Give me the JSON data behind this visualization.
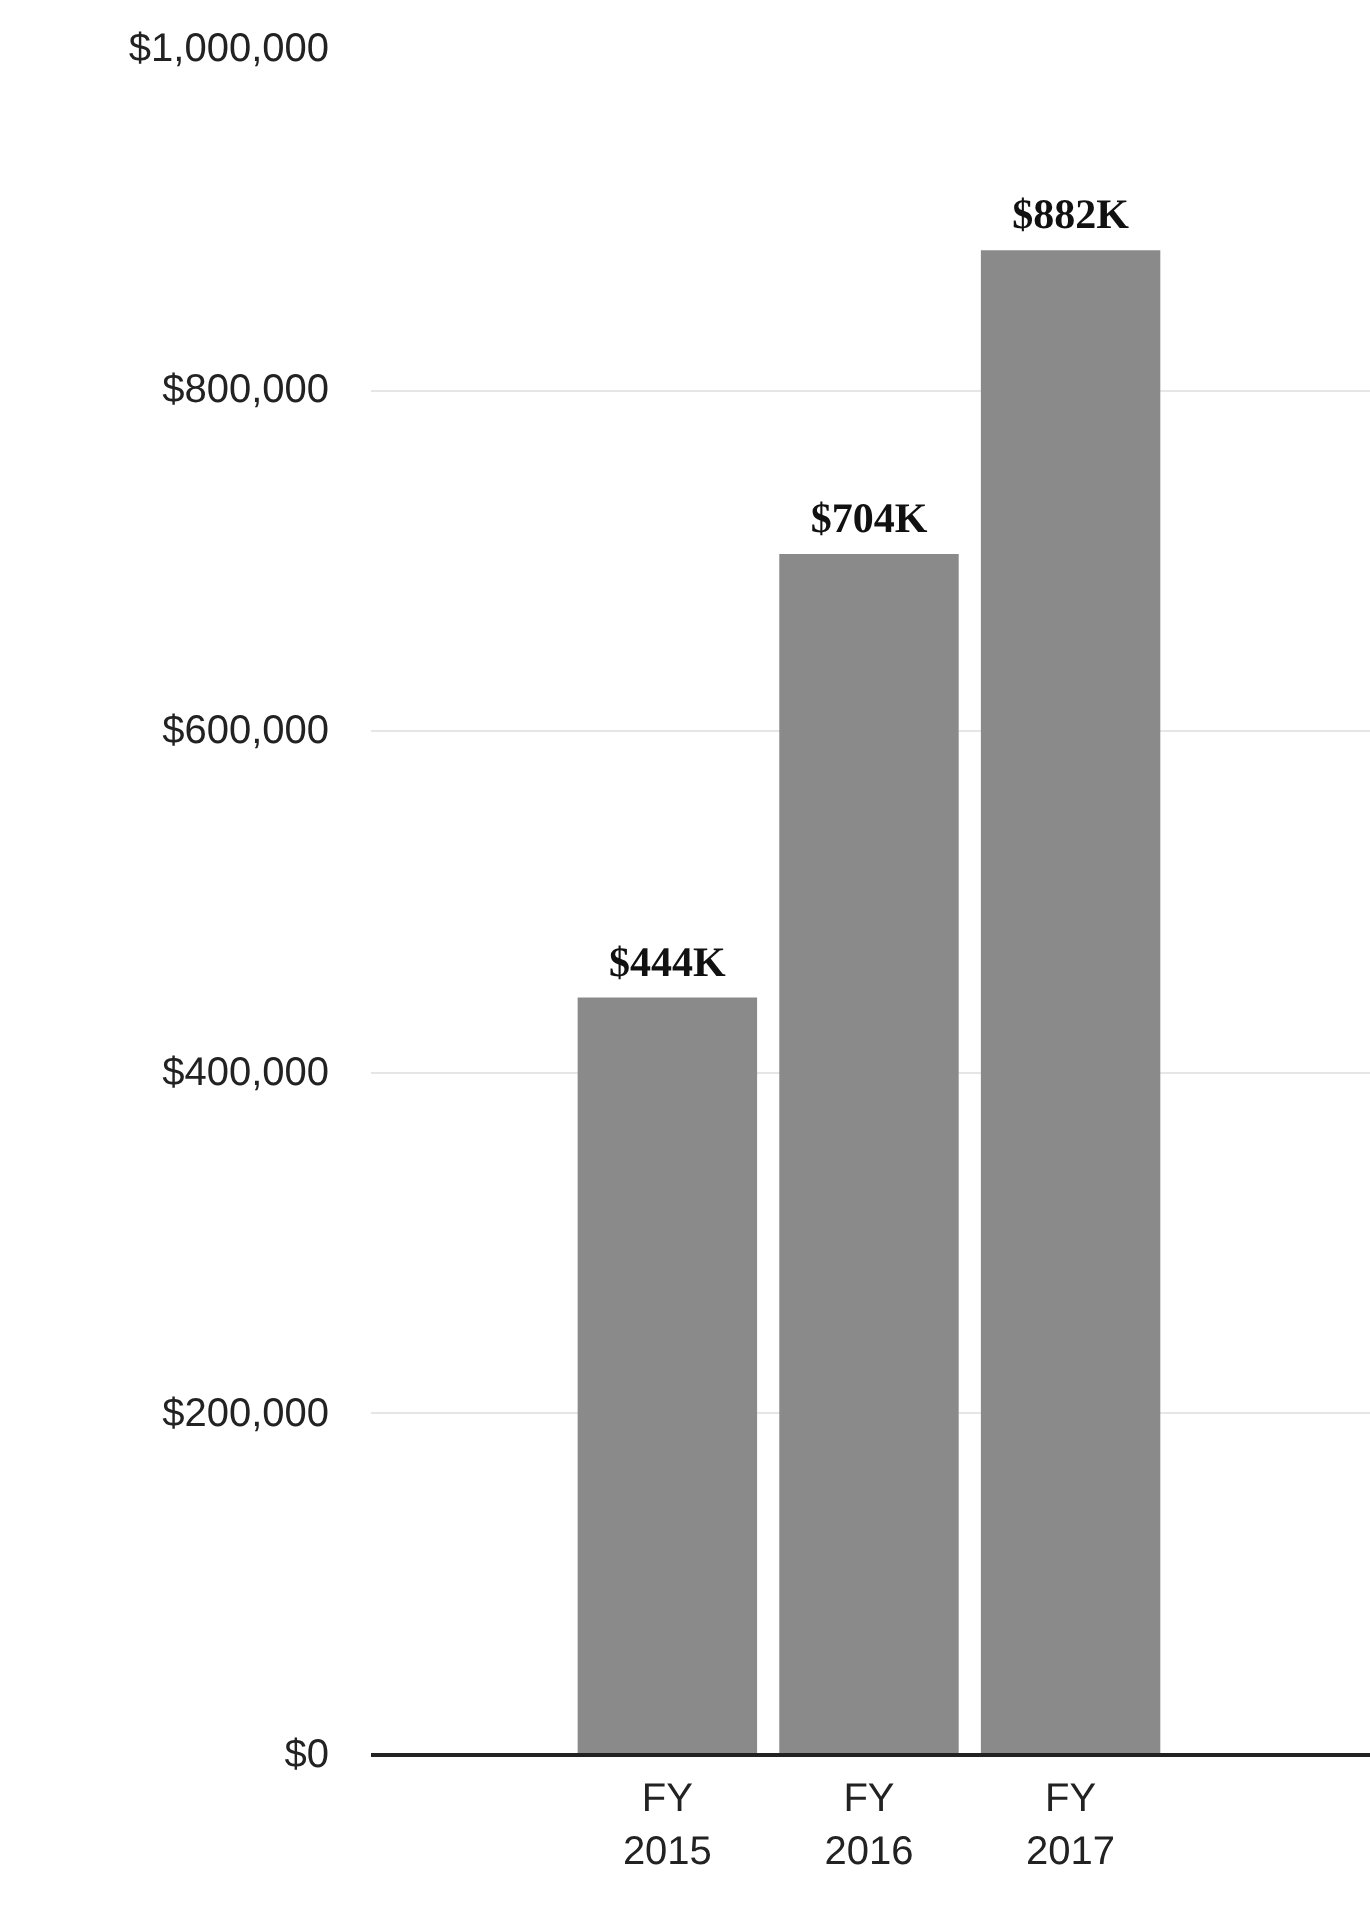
{
  "chart_data": {
    "type": "bar",
    "categories": [
      "FY\n2015",
      "FY\n2016",
      "FY\n2017"
    ],
    "values": [
      444000,
      704000,
      882000
    ],
    "value_labels": [
      "$444K",
      "$704K",
      "$882K"
    ],
    "color": "#8a8a8a",
    "ylim": [
      0,
      1000000
    ],
    "yticks": [
      {
        "value": 0,
        "label": "$0"
      },
      {
        "value": 200000,
        "label": "$200,000"
      },
      {
        "value": 400000,
        "label": "$400,000"
      },
      {
        "value": 600000,
        "label": "$600,000"
      },
      {
        "value": 800000,
        "label": "$800,000"
      },
      {
        "value": 1000000,
        "label": "$1,000,000"
      }
    ],
    "grid": "y"
  }
}
